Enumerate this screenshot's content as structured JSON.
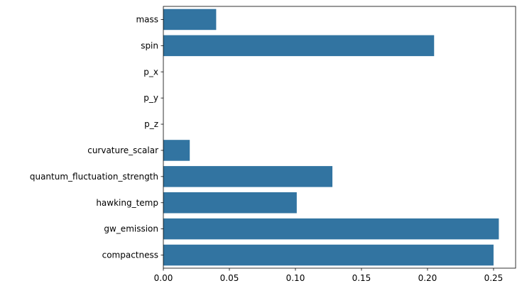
{
  "chart_data": {
    "type": "bar",
    "orientation": "horizontal",
    "categories": [
      "mass",
      "spin",
      "p_x",
      "p_y",
      "p_z",
      "curvature_scalar",
      "quantum_fluctuation_strength",
      "hawking_temp",
      "gw_emission",
      "compactness"
    ],
    "values": [
      0.04,
      0.205,
      0.0,
      0.0,
      0.0,
      0.02,
      0.128,
      0.101,
      0.254,
      0.25
    ],
    "xticks": [
      0.0,
      0.05,
      0.1,
      0.15,
      0.2,
      0.25
    ],
    "xtick_labels": [
      "0.00",
      "0.05",
      "0.10",
      "0.15",
      "0.20",
      "0.25"
    ],
    "xlim": [
      0,
      0.2667
    ],
    "title": "",
    "xlabel": "",
    "ylabel": "",
    "grid": false,
    "colors": {
      "bar": "#3274a1",
      "axis": "#000000",
      "background": "#ffffff"
    }
  }
}
